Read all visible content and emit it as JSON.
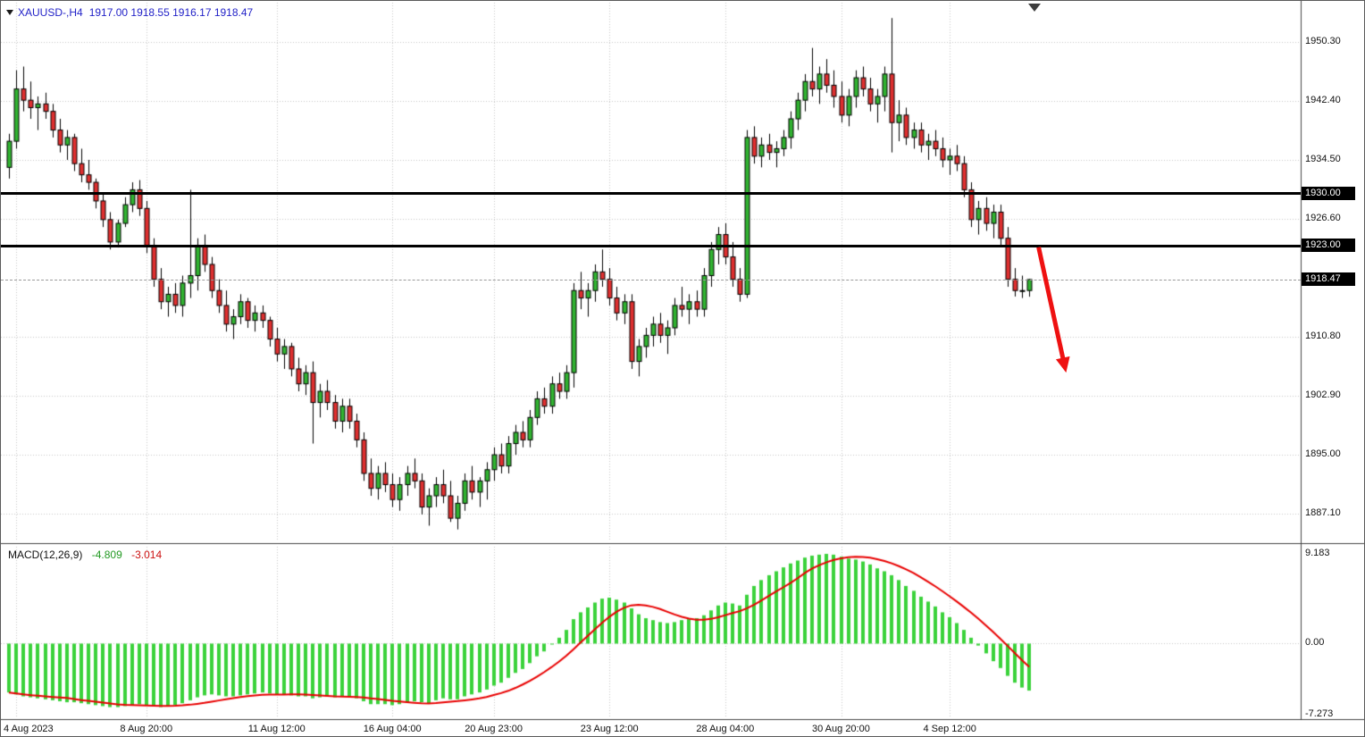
{
  "header": {
    "symbol_period": "XAUUSD-,H4",
    "ohlc": "1917.00 1918.55 1916.17 1918.47",
    "text_color": "#2323c8"
  },
  "chart_data": {
    "type": "candlestick",
    "symbol": "XAUUSD-",
    "timeframe": "H4",
    "ylim": [
      1883.4,
      1955.56
    ],
    "price_ticks": [
      "1950.30",
      "1942.40",
      "1934.50",
      "1926.60",
      "1910.80",
      "1902.90",
      "1895.00",
      "1887.10"
    ],
    "x_ticks": [
      {
        "i": 1,
        "label": "4 Aug 2023"
      },
      {
        "i": 19,
        "label": "8 Aug 20:00"
      },
      {
        "i": 37,
        "label": "11 Aug 12:00"
      },
      {
        "i": 53,
        "label": "16 Aug 04:00"
      },
      {
        "i": 67,
        "label": "20 Aug 23:00"
      },
      {
        "i": 83,
        "label": "23 Aug 12:00"
      },
      {
        "i": 99,
        "label": "28 Aug 04:00"
      },
      {
        "i": 115,
        "label": "30 Aug 20:00"
      },
      {
        "i": 130,
        "label": "4 Sep 12:00"
      }
    ],
    "sr_lines": [
      {
        "price": 1930.0,
        "label": "1930.00"
      },
      {
        "price": 1923.0,
        "label": "1923.00"
      }
    ],
    "current_price": {
      "value": 1918.47,
      "label": "1918.47"
    },
    "annotation": {
      "type": "arrow",
      "from_index": 142.3,
      "from_price": 1922.8,
      "to_index": 146.1,
      "to_price": 1906.0
    },
    "ohlc": [
      [
        1933.5,
        1938.0,
        1932.0,
        1937.0
      ],
      [
        1937.0,
        1946.5,
        1936.0,
        1944.0
      ],
      [
        1944.0,
        1947.0,
        1941.0,
        1942.5
      ],
      [
        1942.5,
        1945.0,
        1940.0,
        1941.5
      ],
      [
        1941.5,
        1943.0,
        1938.5,
        1942.0
      ],
      [
        1942.0,
        1943.5,
        1940.0,
        1941.0
      ],
      [
        1941.0,
        1942.0,
        1937.5,
        1938.5
      ],
      [
        1938.5,
        1940.0,
        1935.5,
        1936.5
      ],
      [
        1936.5,
        1938.5,
        1934.5,
        1937.5
      ],
      [
        1937.5,
        1938.0,
        1933.0,
        1934.0
      ],
      [
        1934.0,
        1936.0,
        1931.5,
        1932.5
      ],
      [
        1932.5,
        1934.5,
        1930.5,
        1931.5
      ],
      [
        1931.5,
        1932.0,
        1928.0,
        1929.0
      ],
      [
        1929.0,
        1930.0,
        1925.5,
        1926.5
      ],
      [
        1926.5,
        1927.5,
        1922.5,
        1923.5
      ],
      [
        1923.5,
        1926.5,
        1922.8,
        1926.0
      ],
      [
        1926.0,
        1929.5,
        1925.5,
        1928.5
      ],
      [
        1928.5,
        1931.5,
        1927.5,
        1930.5
      ],
      [
        1930.5,
        1931.8,
        1927.0,
        1928.0
      ],
      [
        1928.0,
        1929.0,
        1922.0,
        1923.0
      ],
      [
        1923.0,
        1924.0,
        1917.5,
        1918.5
      ],
      [
        1918.5,
        1920.0,
        1914.5,
        1915.5
      ],
      [
        1915.5,
        1917.5,
        1913.5,
        1916.5
      ],
      [
        1916.5,
        1918.0,
        1914.0,
        1915.0
      ],
      [
        1915.0,
        1919.0,
        1913.5,
        1918.0
      ],
      [
        1918.0,
        1930.5,
        1916.0,
        1919.0
      ],
      [
        1919.0,
        1924.0,
        1917.0,
        1923.0
      ],
      [
        1923.0,
        1924.5,
        1919.5,
        1920.5
      ],
      [
        1920.5,
        1921.5,
        1916.0,
        1917.0
      ],
      [
        1917.0,
        1918.5,
        1914.0,
        1915.0
      ],
      [
        1915.0,
        1917.0,
        1911.5,
        1912.5
      ],
      [
        1912.5,
        1914.5,
        1910.5,
        1913.5
      ],
      [
        1913.5,
        1916.5,
        1912.5,
        1915.5
      ],
      [
        1915.5,
        1916.0,
        1912.0,
        1913.0
      ],
      [
        1913.0,
        1915.0,
        1911.5,
        1914.0
      ],
      [
        1914.0,
        1915.0,
        1912.0,
        1913.0
      ],
      [
        1913.0,
        1913.5,
        1909.5,
        1910.5
      ],
      [
        1910.5,
        1912.0,
        1907.5,
        1908.5
      ],
      [
        1908.5,
        1910.5,
        1906.5,
        1909.5
      ],
      [
        1909.5,
        1910.0,
        1905.5,
        1906.5
      ],
      [
        1906.5,
        1908.0,
        1903.5,
        1904.5
      ],
      [
        1904.5,
        1907.0,
        1903.0,
        1906.0
      ],
      [
        1906.0,
        1907.5,
        1896.5,
        1902.0
      ],
      [
        1902.0,
        1904.5,
        1900.0,
        1903.5
      ],
      [
        1903.5,
        1905.0,
        1901.0,
        1902.0
      ],
      [
        1902.0,
        1903.0,
        1898.5,
        1899.5
      ],
      [
        1899.5,
        1902.5,
        1898.0,
        1901.5
      ],
      [
        1901.5,
        1902.5,
        1898.5,
        1899.5
      ],
      [
        1899.5,
        1900.5,
        1896.0,
        1897.0
      ],
      [
        1897.0,
        1898.0,
        1891.5,
        1892.5
      ],
      [
        1892.5,
        1894.5,
        1889.5,
        1890.5
      ],
      [
        1890.5,
        1893.5,
        1889.0,
        1892.5
      ],
      [
        1892.5,
        1894.0,
        1890.0,
        1891.0
      ],
      [
        1891.0,
        1892.5,
        1888.0,
        1889.0
      ],
      [
        1889.0,
        1892.0,
        1887.5,
        1891.0
      ],
      [
        1891.0,
        1893.5,
        1889.5,
        1892.5
      ],
      [
        1892.5,
        1894.5,
        1890.5,
        1891.5
      ],
      [
        1891.5,
        1892.5,
        1887.0,
        1888.0
      ],
      [
        1888.0,
        1890.5,
        1885.5,
        1889.5
      ],
      [
        1889.5,
        1892.0,
        1888.0,
        1891.0
      ],
      [
        1891.0,
        1893.0,
        1888.5,
        1889.5
      ],
      [
        1889.5,
        1891.5,
        1886.0,
        1886.5
      ],
      [
        1886.5,
        1889.5,
        1885.0,
        1888.5
      ],
      [
        1888.5,
        1892.5,
        1887.5,
        1891.5
      ],
      [
        1891.5,
        1893.5,
        1889.0,
        1890.0
      ],
      [
        1890.0,
        1892.0,
        1888.0,
        1891.5
      ],
      [
        1891.5,
        1894.0,
        1889.0,
        1893.0
      ],
      [
        1893.0,
        1896.0,
        1891.5,
        1895.0
      ],
      [
        1895.0,
        1896.5,
        1892.5,
        1893.5
      ],
      [
        1893.5,
        1897.5,
        1892.5,
        1896.5
      ],
      [
        1896.5,
        1899.0,
        1895.0,
        1898.0
      ],
      [
        1898.0,
        1899.5,
        1896.0,
        1897.0
      ],
      [
        1897.0,
        1901.0,
        1896.0,
        1900.0
      ],
      [
        1900.0,
        1903.5,
        1899.0,
        1902.5
      ],
      [
        1902.5,
        1904.0,
        1900.5,
        1901.5
      ],
      [
        1901.5,
        1905.5,
        1900.5,
        1904.5
      ],
      [
        1904.5,
        1906.0,
        1902.5,
        1903.5
      ],
      [
        1903.5,
        1907.0,
        1902.5,
        1906.0
      ],
      [
        1906.0,
        1918.0,
        1904.0,
        1917.0
      ],
      [
        1917.0,
        1919.5,
        1914.5,
        1916.0
      ],
      [
        1916.0,
        1918.0,
        1913.5,
        1917.0
      ],
      [
        1917.0,
        1920.5,
        1915.5,
        1919.5
      ],
      [
        1919.5,
        1922.5,
        1917.5,
        1918.5
      ],
      [
        1918.5,
        1920.0,
        1915.0,
        1916.0
      ],
      [
        1916.0,
        1917.5,
        1913.0,
        1914.0
      ],
      [
        1914.0,
        1916.5,
        1912.5,
        1915.5
      ],
      [
        1915.5,
        1916.5,
        1906.5,
        1907.5
      ],
      [
        1907.5,
        1910.5,
        1905.5,
        1909.5
      ],
      [
        1909.5,
        1912.0,
        1908.0,
        1911.0
      ],
      [
        1911.0,
        1913.5,
        1909.5,
        1912.5
      ],
      [
        1912.5,
        1914.0,
        1910.0,
        1911.0
      ],
      [
        1911.0,
        1913.0,
        1908.5,
        1912.0
      ],
      [
        1912.0,
        1916.0,
        1911.0,
        1915.0
      ],
      [
        1915.0,
        1917.5,
        1913.5,
        1914.5
      ],
      [
        1914.5,
        1916.5,
        1912.5,
        1915.5
      ],
      [
        1915.5,
        1917.0,
        1913.5,
        1914.5
      ],
      [
        1914.5,
        1920.0,
        1913.5,
        1919.0
      ],
      [
        1919.0,
        1923.5,
        1917.5,
        1922.5
      ],
      [
        1922.5,
        1925.5,
        1920.5,
        1924.5
      ],
      [
        1924.5,
        1926.0,
        1920.5,
        1921.5
      ],
      [
        1921.5,
        1923.5,
        1917.5,
        1918.5
      ],
      [
        1918.5,
        1920.0,
        1915.5,
        1916.5
      ],
      [
        1916.5,
        1938.5,
        1916.0,
        1937.5
      ],
      [
        1937.5,
        1939.0,
        1934.0,
        1935.0
      ],
      [
        1935.0,
        1937.5,
        1933.5,
        1936.5
      ],
      [
        1936.5,
        1938.0,
        1934.5,
        1935.5
      ],
      [
        1935.5,
        1937.0,
        1933.5,
        1936.0
      ],
      [
        1936.0,
        1938.5,
        1935.0,
        1937.5
      ],
      [
        1937.5,
        1941.0,
        1936.0,
        1940.0
      ],
      [
        1940.0,
        1943.5,
        1938.5,
        1942.5
      ],
      [
        1942.5,
        1946.0,
        1941.0,
        1945.0
      ],
      [
        1945.0,
        1949.5,
        1943.0,
        1944.0
      ],
      [
        1944.0,
        1947.0,
        1942.0,
        1946.0
      ],
      [
        1946.0,
        1948.0,
        1943.5,
        1944.5
      ],
      [
        1944.5,
        1946.5,
        1941.5,
        1943.0
      ],
      [
        1943.0,
        1945.0,
        1939.5,
        1940.5
      ],
      [
        1940.5,
        1944.0,
        1939.0,
        1943.0
      ],
      [
        1943.0,
        1946.5,
        1941.5,
        1945.5
      ],
      [
        1945.5,
        1947.0,
        1943.0,
        1944.0
      ],
      [
        1944.0,
        1945.5,
        1941.0,
        1942.0
      ],
      [
        1942.0,
        1944.0,
        1939.5,
        1943.0
      ],
      [
        1943.0,
        1947.0,
        1941.0,
        1946.0
      ],
      [
        1946.0,
        1953.5,
        1935.5,
        1939.5
      ],
      [
        1939.5,
        1942.5,
        1937.0,
        1940.5
      ],
      [
        1940.5,
        1941.5,
        1936.5,
        1937.5
      ],
      [
        1937.5,
        1939.5,
        1936.0,
        1938.5
      ],
      [
        1938.5,
        1939.5,
        1935.5,
        1936.5
      ],
      [
        1936.5,
        1938.0,
        1934.5,
        1937.0
      ],
      [
        1937.0,
        1938.5,
        1935.0,
        1936.0
      ],
      [
        1936.0,
        1937.5,
        1933.5,
        1934.5
      ],
      [
        1934.5,
        1936.0,
        1932.5,
        1935.0
      ],
      [
        1935.0,
        1936.5,
        1933.0,
        1934.0
      ],
      [
        1934.0,
        1935.0,
        1929.5,
        1930.5
      ],
      [
        1930.5,
        1931.5,
        1925.5,
        1926.5
      ],
      [
        1926.5,
        1929.0,
        1924.5,
        1928.0
      ],
      [
        1928.0,
        1929.5,
        1925.0,
        1926.0
      ],
      [
        1926.0,
        1928.5,
        1924.0,
        1927.5
      ],
      [
        1927.5,
        1928.5,
        1923.0,
        1924.0
      ],
      [
        1924.0,
        1925.5,
        1917.5,
        1918.5
      ],
      [
        1918.5,
        1920.0,
        1916.2,
        1917.0
      ],
      [
        1917.0,
        1919.0,
        1916.0,
        1917.0
      ],
      [
        1917.0,
        1918.55,
        1916.17,
        1918.47
      ]
    ],
    "macd": {
      "label": "MACD(12,26,9)",
      "value": "-4.809",
      "signal": "-3.014",
      "ticks": [
        "9.183",
        "0.00",
        "-7.273"
      ],
      "ylim": [
        -7.273,
        9.183
      ],
      "fast": 12,
      "slow": 26,
      "signal_period": 9,
      "values": [
        -5.0,
        -5.2,
        -5.4,
        -5.5,
        -5.6,
        -5.7,
        -5.8,
        -5.9,
        -6.0,
        -6.0,
        -6.1,
        -6.2,
        -6.3,
        -6.4,
        -6.5,
        -6.5,
        -6.4,
        -6.3,
        -6.2,
        -6.3,
        -6.4,
        -6.5,
        -6.4,
        -6.3,
        -6.1,
        -5.8,
        -5.5,
        -5.3,
        -5.2,
        -5.3,
        -5.4,
        -5.4,
        -5.3,
        -5.2,
        -5.1,
        -5.0,
        -5.1,
        -5.2,
        -5.2,
        -5.3,
        -5.4,
        -5.4,
        -5.6,
        -5.5,
        -5.4,
        -5.5,
        -5.4,
        -5.4,
        -5.6,
        -5.9,
        -6.2,
        -6.2,
        -6.2,
        -6.3,
        -6.2,
        -6.0,
        -5.9,
        -6.0,
        -6.1,
        -5.8,
        -5.6,
        -5.7,
        -5.7,
        -5.4,
        -5.2,
        -5.0,
        -4.7,
        -4.3,
        -4.0,
        -3.5,
        -3.0,
        -2.6,
        -2.0,
        -1.3,
        -0.8,
        -0.1,
        0.6,
        1.4,
        2.5,
        3.2,
        3.7,
        4.2,
        4.6,
        4.7,
        4.5,
        4.2,
        3.6,
        3.0,
        2.6,
        2.4,
        2.2,
        2.1,
        2.2,
        2.4,
        2.5,
        2.6,
        2.9,
        3.4,
        3.9,
        4.2,
        4.1,
        3.9,
        5.0,
        5.9,
        6.5,
        7.0,
        7.4,
        7.8,
        8.2,
        8.5,
        8.8,
        9.0,
        9.1,
        9.18,
        9.1,
        8.9,
        8.7,
        8.6,
        8.4,
        8.1,
        7.7,
        7.4,
        7.0,
        6.5,
        5.9,
        5.4,
        4.8,
        4.3,
        3.8,
        3.2,
        2.7,
        2.1,
        1.4,
        0.6,
        -0.2,
        -1.0,
        -1.8,
        -2.5,
        -3.3,
        -4.0,
        -4.5,
        -4.809
      ]
    },
    "colors": {
      "bull": "#32b432",
      "bear": "#e03030",
      "outline": "#000000",
      "grid": "#c6c6c6",
      "macd_bar": "#3bd23b",
      "macd_signal": "#e80000",
      "sr_line": "#000000",
      "price_line": "#9a9a9a",
      "tag_bg": "#000000",
      "tag_fg": "#ffffff",
      "arrow": "#ee1111"
    }
  }
}
